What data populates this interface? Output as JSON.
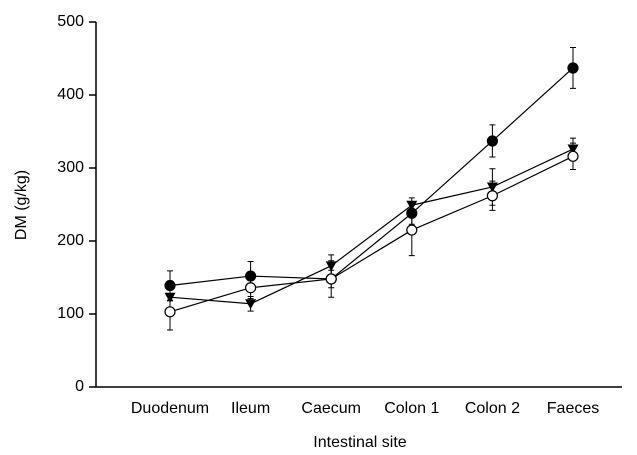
{
  "chart_data": {
    "type": "line",
    "x_label": "Intestinal site",
    "y_label": "DM (g/kg)",
    "categories": [
      "Duodenum",
      "Ileum",
      "Caecum",
      "Colon 1",
      "Colon 2",
      "Faeces"
    ],
    "series": [
      {
        "color": "#000000",
        "marker": "circle-filled",
        "values": [
          139,
          152,
          148,
          238,
          337,
          437
        ],
        "errors": [
          20,
          20,
          12,
          15,
          22,
          28
        ]
      },
      {
        "color": "#000000",
        "marker": "triangle-down-filled",
        "values": [
          123,
          114,
          166,
          249,
          274,
          326
        ],
        "errors": [
          5,
          10,
          15,
          10,
          25,
          15
        ]
      },
      {
        "color": "#000000",
        "marker": "circle-open",
        "values": [
          103,
          136,
          148,
          215,
          262,
          316
        ],
        "errors": [
          25,
          15,
          25,
          35,
          20,
          18
        ]
      }
    ],
    "ylim": [
      0,
      500
    ],
    "yticks": [
      0,
      100,
      200,
      300,
      400,
      500
    ],
    "grid": false
  }
}
